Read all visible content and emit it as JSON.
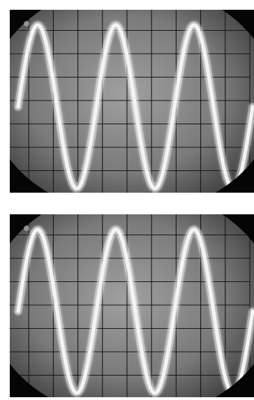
{
  "photos": [
    {
      "label": "",
      "trace": {
        "type": "sine",
        "cycles": 3,
        "amplitude_divisions": 3.5,
        "offset_divisions": 0,
        "start_phase_deg": 0,
        "divisions_x": 10,
        "divisions_y": 8,
        "trace_color": "#f4f4f4"
      }
    },
    {
      "label": "",
      "trace": {
        "type": "sine",
        "cycles": 3,
        "amplitude_divisions": 3.5,
        "offset_divisions": 0,
        "start_phase_deg": 0,
        "divisions_x": 10,
        "divisions_y": 8,
        "trace_color": "#f4f4f4"
      }
    }
  ],
  "colors": {
    "screen_center": "#9b9b9b",
    "screen_edge": "#2a2a2a",
    "bezel": "#050505",
    "graticule": "#161616"
  }
}
